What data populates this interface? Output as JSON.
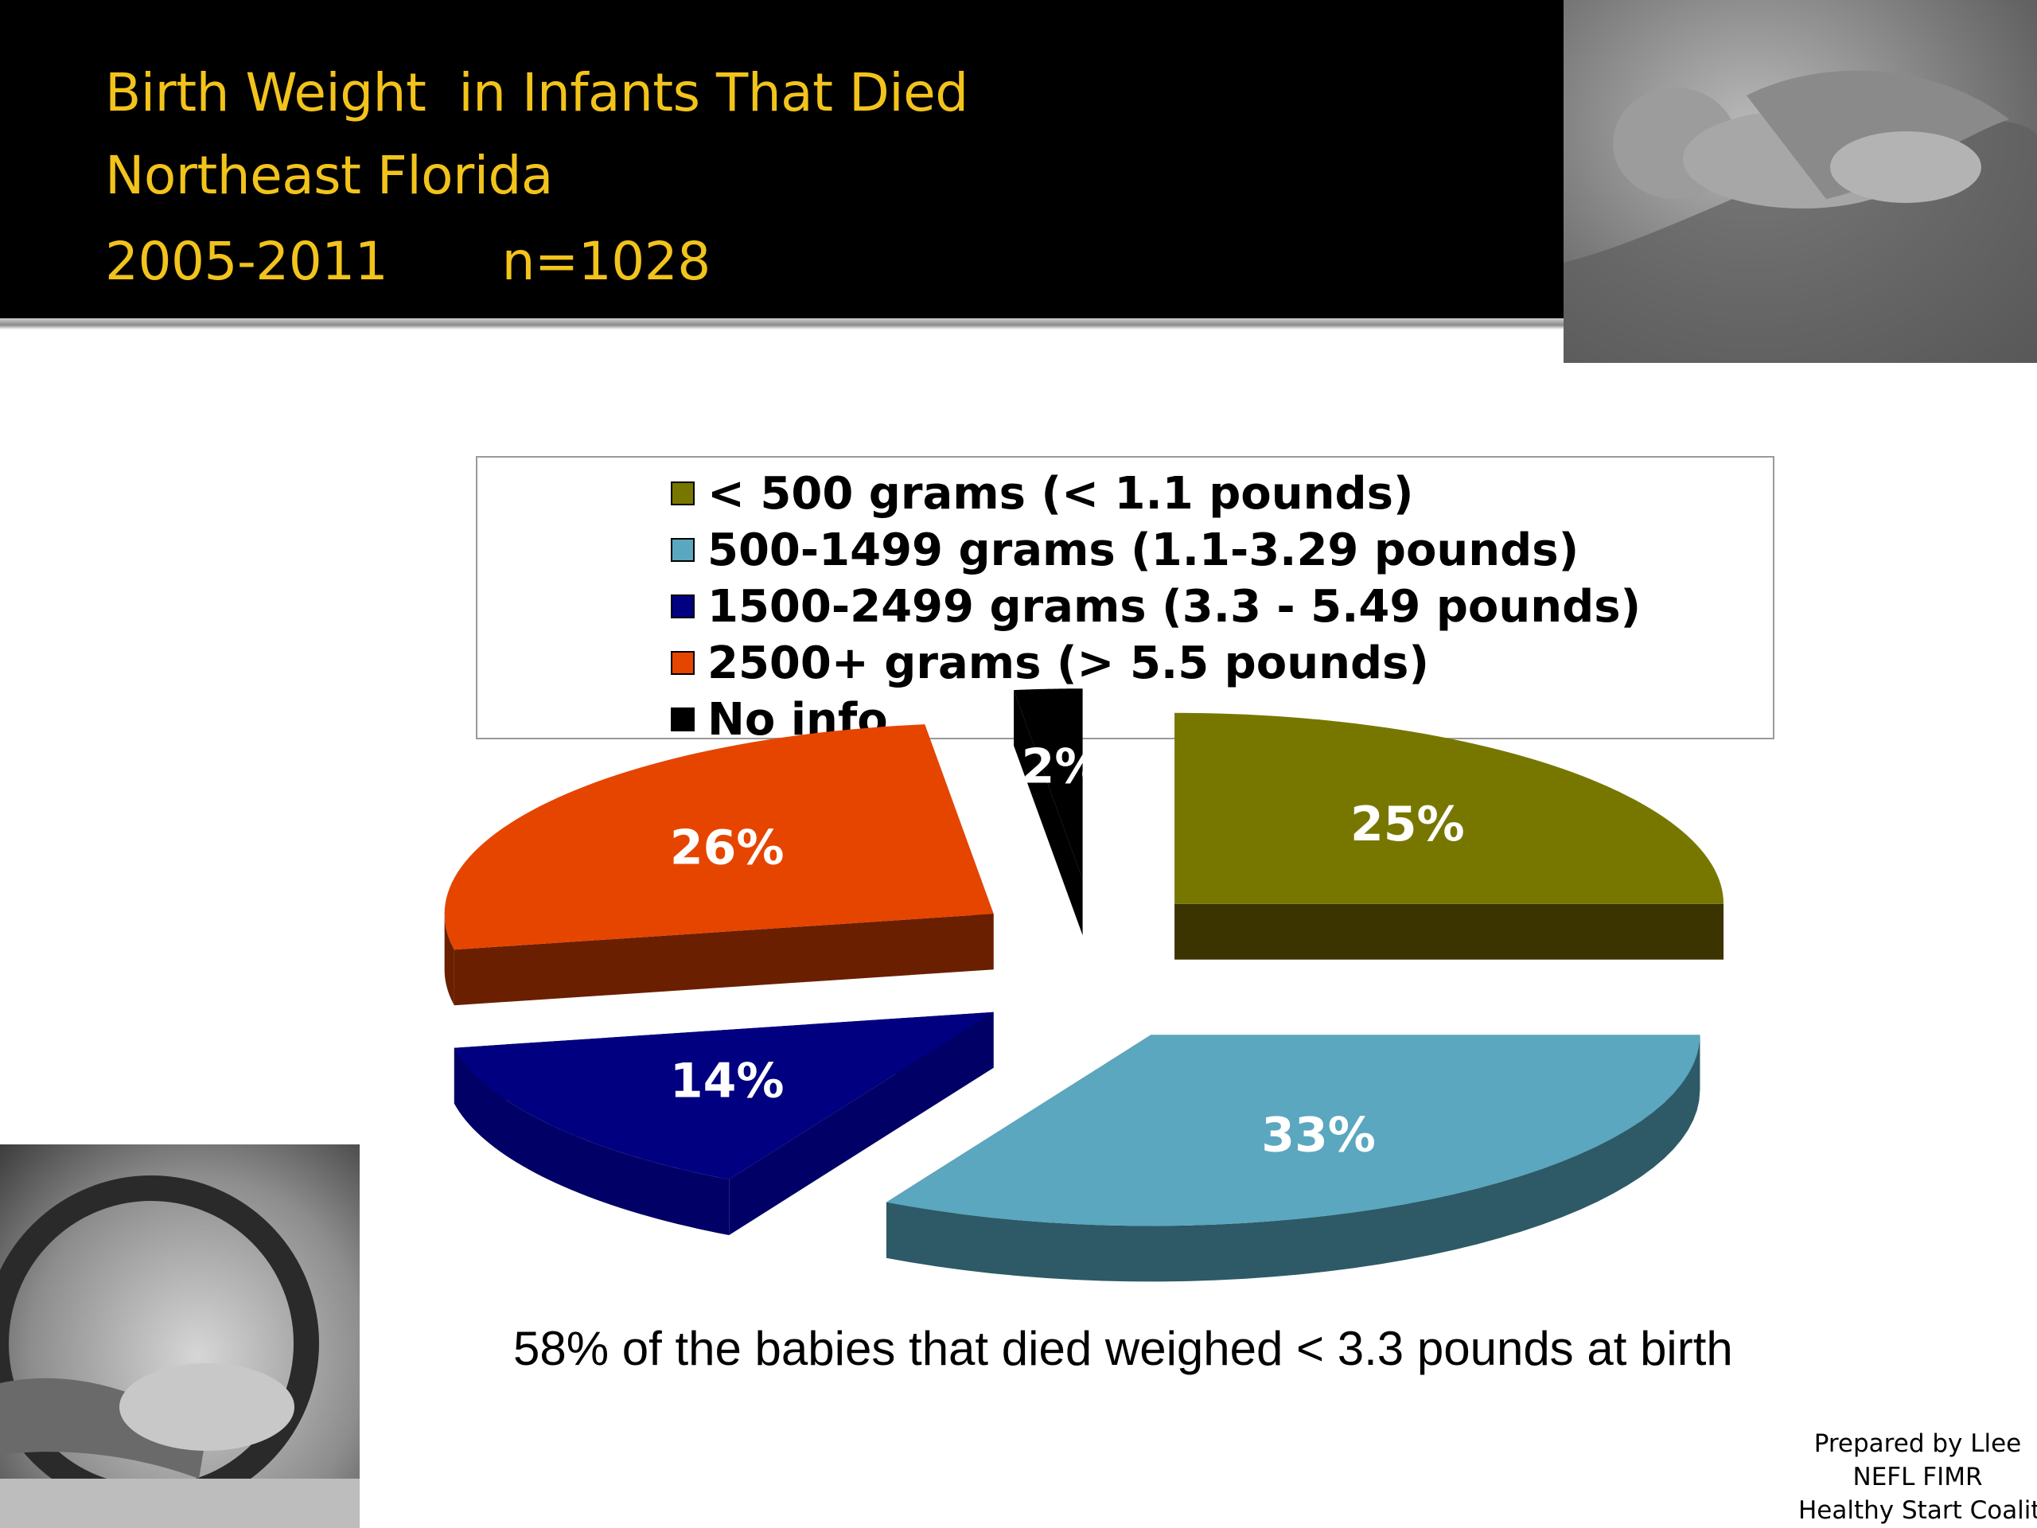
{
  "slide": {
    "title_lines": [
      "Birth Weight  in Infants That Died",
      "Northeast Florida",
      "2005-2011       n=1028"
    ],
    "caption": "58% of the babies that died weighed < 3.3 pounds at birth",
    "credit_lines": [
      "Prepared by Llee",
      "NEFL FIMR",
      "Healthy Start Coalition"
    ]
  },
  "photos": {
    "top_right": "photo-infant-in-hand-icon",
    "bottom_left": "photo-infant-in-incubator-icon"
  },
  "chart_data": {
    "type": "pie",
    "style": "3d-exploded",
    "series": [
      {
        "name": "< 500 grams (< 1.1 pounds)",
        "value": 25,
        "label": "25%",
        "color": "#777700",
        "side_color": "#3b3300"
      },
      {
        "name": "500-1499 grams (1.1-3.29 pounds)",
        "value": 33,
        "label": "33%",
        "color": "#5aa7bf",
        "side_color": "#2d5a66"
      },
      {
        "name": "1500-2499 grams (3.3 - 5.49 pounds)",
        "value": 14,
        "label": "14%",
        "color": "#000080",
        "side_color": "#000066"
      },
      {
        "name": "2500+ grams (> 5.5 pounds)",
        "value": 26,
        "label": "26%",
        "color": "#e64500",
        "side_color": "#6a1f00"
      },
      {
        "name": "No info",
        "value": 2,
        "label": "2%",
        "color": "#000000",
        "side_color": "#000000"
      }
    ],
    "legend_position": "top"
  }
}
